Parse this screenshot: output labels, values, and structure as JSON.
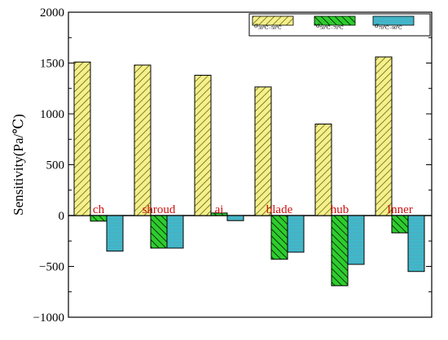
{
  "chart_data": {
    "type": "bar",
    "ylabel": "Sensitivity(Pa/℃)",
    "ylim": [
      -1000,
      2000
    ],
    "yticks": [
      -1000,
      -500,
      0,
      500,
      1000,
      1500,
      2000
    ],
    "ytick_labels": [
      "−1000",
      "−500",
      "0",
      "500",
      "1000",
      "1500",
      "2000"
    ],
    "grid": false,
    "legend_position": "top-right",
    "categories": [
      "ch",
      "shroud",
      "ai",
      "blade",
      "hub",
      "Inner"
    ],
    "series": [
      {
        "name": "σ",
        "name_sub": "30℃−50℃",
        "values": [
          1510,
          1480,
          1380,
          1265,
          900,
          1560
        ]
      },
      {
        "name": "σ",
        "name_sub": "50℃−70℃",
        "values": [
          -55,
          -320,
          25,
          -430,
          -690,
          -170
        ]
      },
      {
        "name": "σ",
        "name_sub": "70℃−90℃",
        "values": [
          -350,
          -320,
          -50,
          -360,
          -480,
          -550
        ]
      }
    ],
    "colors": [
      "#f5f08a",
      "#33cc33",
      "#3fb8cc"
    ],
    "pattern_colors": [
      "#7a7a20",
      "#0f4a0f",
      "#3a7f8a"
    ]
  }
}
